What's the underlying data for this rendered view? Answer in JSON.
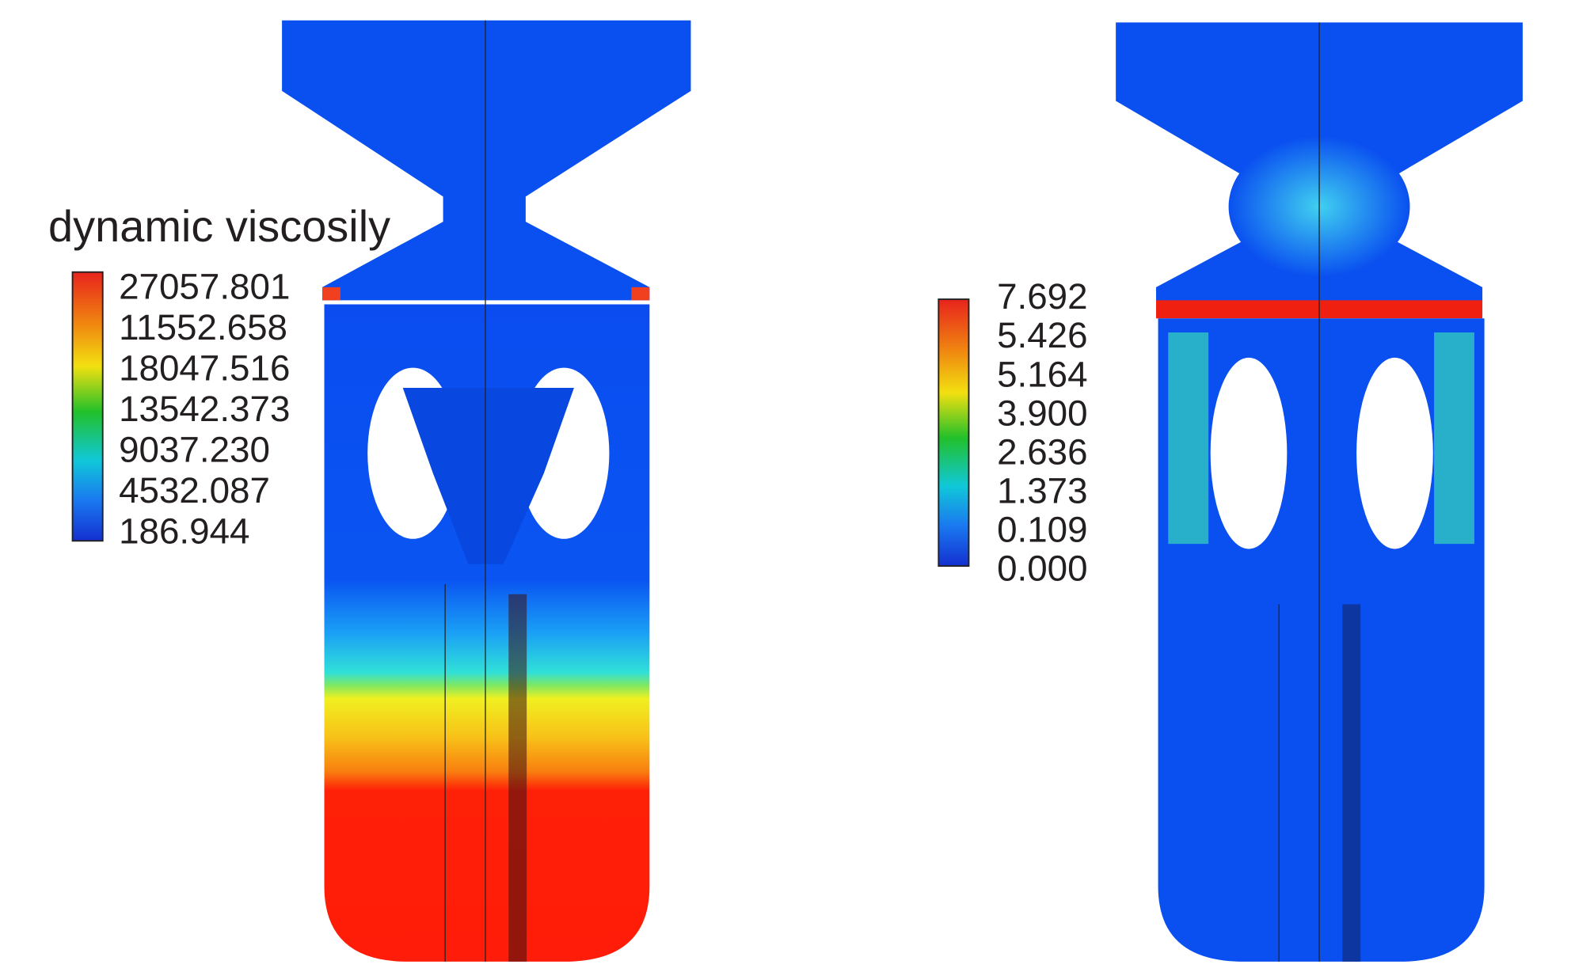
{
  "left_panel": {
    "title": "dynamic viscosily",
    "colorbar_labels": [
      "27057.801",
      "11552.658",
      "18047.516",
      "13542.373",
      "9037.230",
      "4532.087",
      "186.944"
    ]
  },
  "right_panel": {
    "colorbar_labels": [
      "7.692",
      "5.426",
      "5.164",
      "3.900",
      "2.636",
      "1.373",
      "0.109",
      "0.000"
    ]
  }
}
